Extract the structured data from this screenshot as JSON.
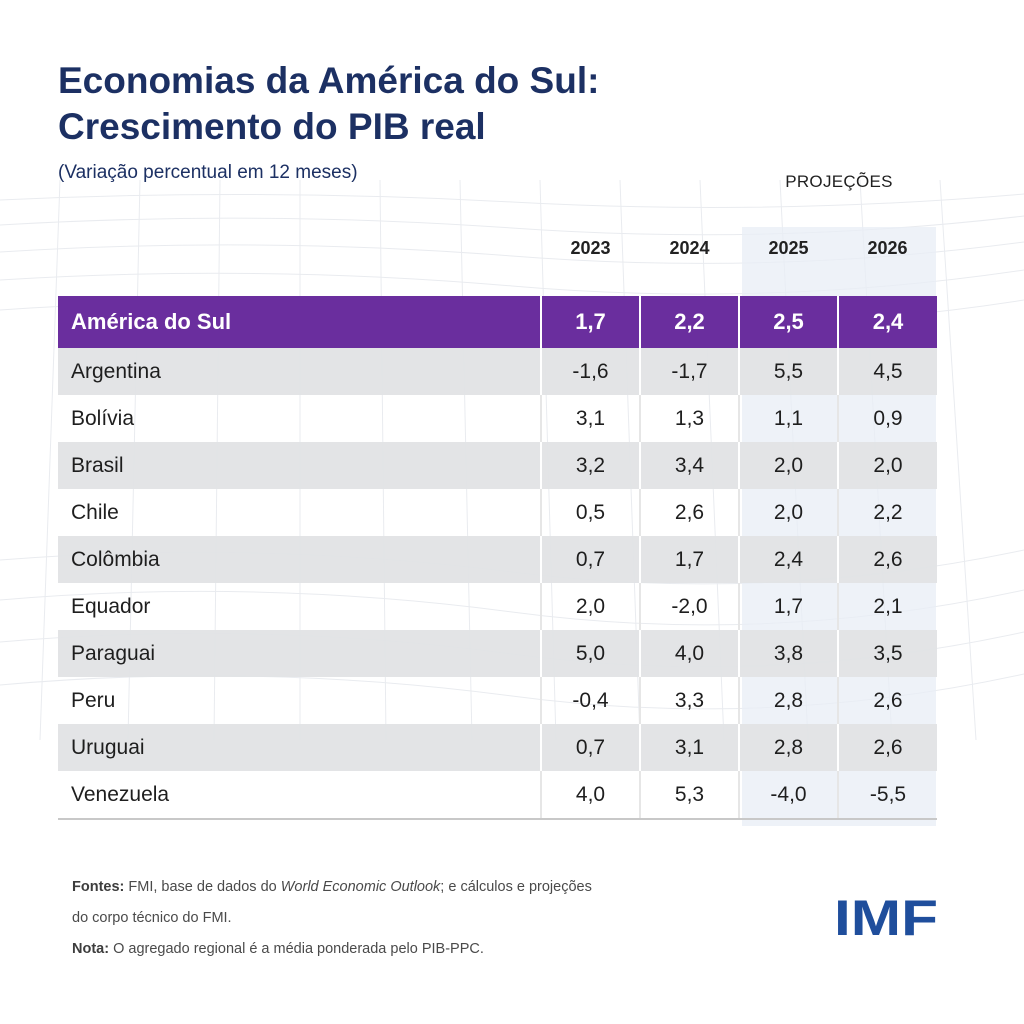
{
  "title_line1": "Economias da América do Sul:",
  "title_line2": "Crescimento do PIB real",
  "subtitle": "(Variação percentual em 12 meses)",
  "projections_label": "PROJEÇÕES",
  "colors": {
    "title": "#1c3063",
    "aggregate_row": "#6a2e9e",
    "stripe": "#e2e3e5",
    "projection_band": "#e8eef6",
    "logo": "#1f4e9c"
  },
  "chart_data": {
    "type": "table",
    "columns": [
      "2023",
      "2024",
      "2025",
      "2026"
    ],
    "projection_columns": [
      "2025",
      "2026"
    ],
    "aggregate": {
      "name": "América do Sul",
      "values": [
        "1,7",
        "2,2",
        "2,5",
        "2,4"
      ]
    },
    "rows": [
      {
        "name": "Argentina",
        "values": [
          "-1,6",
          "-1,7",
          "5,5",
          "4,5"
        ]
      },
      {
        "name": "Bolívia",
        "values": [
          "3,1",
          "1,3",
          "1,1",
          "0,9"
        ]
      },
      {
        "name": "Brasil",
        "values": [
          "3,2",
          "3,4",
          "2,0",
          "2,0"
        ]
      },
      {
        "name": "Chile",
        "values": [
          "0,5",
          "2,6",
          "2,0",
          "2,2"
        ]
      },
      {
        "name": "Colômbia",
        "values": [
          "0,7",
          "1,7",
          "2,4",
          "2,6"
        ]
      },
      {
        "name": "Equador",
        "values": [
          "2,0",
          "-2,0",
          "1,7",
          "2,1"
        ]
      },
      {
        "name": "Paraguai",
        "values": [
          "5,0",
          "4,0",
          "3,8",
          "3,5"
        ]
      },
      {
        "name": "Peru",
        "values": [
          "-0,4",
          "3,3",
          "2,8",
          "2,6"
        ]
      },
      {
        "name": "Uruguai",
        "values": [
          "0,7",
          "3,1",
          "2,8",
          "2,6"
        ]
      },
      {
        "name": "Venezuela",
        "values": [
          "4,0",
          "5,3",
          "-4,0",
          "-5,5"
        ]
      }
    ]
  },
  "notes": {
    "sources_label": "Fontes:",
    "sources_text_1": " FMI, base de dados do ",
    "sources_italic": "World Economic Outlook",
    "sources_text_2": "; e cálculos e projeções do corpo técnico do FMI.",
    "note_label": "Nota:",
    "note_text": " O agregado regional é a média ponderada pelo PIB-PPC."
  },
  "logo_text": "IMF"
}
